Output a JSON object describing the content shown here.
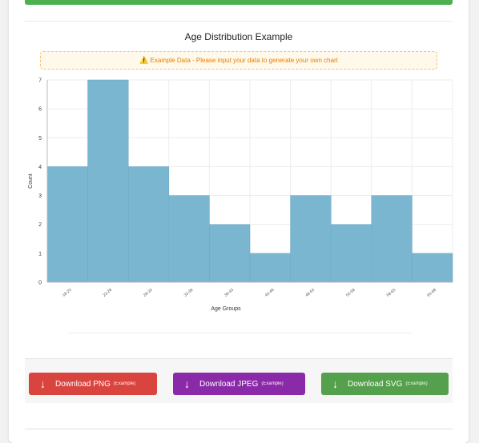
{
  "chart_title": "Age Distribution Example",
  "notice": {
    "icon": "warning-icon",
    "text": "Example Data - Please input your data to generate your own chart"
  },
  "buttons": {
    "png": {
      "label": "Download PNG",
      "tag": "(Example)",
      "color": "#d9443f"
    },
    "jpeg": {
      "label": "Download JPEG",
      "tag": "(Example)",
      "color": "#8a2aa8"
    },
    "svg": {
      "label": "Download SVG",
      "tag": "(Example)",
      "color": "#55a04c"
    }
  },
  "chart_data": {
    "type": "bar",
    "title": "Age Distribution Example",
    "xlabel": "Age Groups",
    "ylabel": "Count",
    "categories": [
      "18-23",
      "23-28",
      "28-33",
      "33-38",
      "38-43",
      "43-48",
      "48-53",
      "53-58",
      "58-63",
      "63-68"
    ],
    "values": [
      4,
      7,
      4,
      3,
      2,
      1,
      3,
      2,
      3,
      1
    ],
    "ylim": [
      0,
      7
    ],
    "yticks": [
      0,
      1,
      2,
      3,
      4,
      5,
      6,
      7
    ],
    "grid": true,
    "bar_color": "#7bb6d0",
    "bar_border": "#6aa8c4"
  }
}
